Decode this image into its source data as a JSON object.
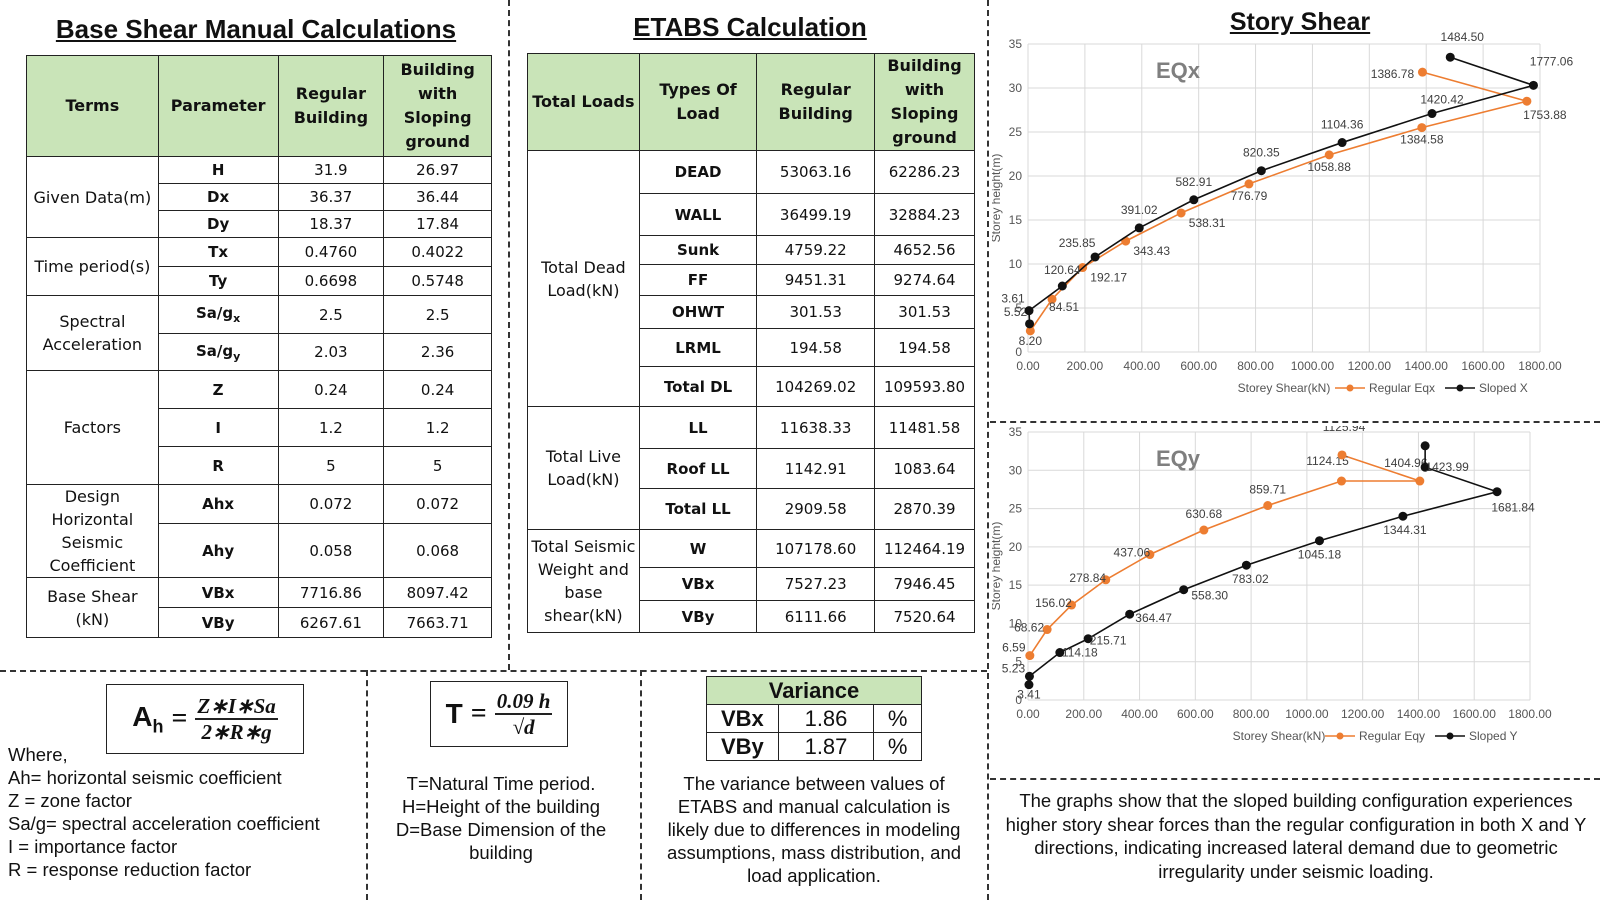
{
  "manual": {
    "title": "Base Shear Manual Calculations",
    "headers": [
      "Terms",
      "Parameter",
      "Regular Building",
      "Building with Sloping ground"
    ],
    "groups": [
      {
        "term": "Given Data(m)",
        "rows": [
          [
            "H",
            "31.9",
            "26.97"
          ],
          [
            "Dx",
            "36.37",
            "36.44"
          ],
          [
            "Dy",
            "18.37",
            "17.84"
          ]
        ]
      },
      {
        "term": "Time period(s)",
        "rows": [
          [
            "Tx",
            "0.4760",
            "0.4022"
          ],
          [
            "Ty",
            "0.6698",
            "0.5748"
          ]
        ]
      },
      {
        "term": "Spectral Acceleration",
        "rows": [
          [
            "Sa/gx",
            "2.5",
            "2.5"
          ],
          [
            "Sa/gy",
            "2.03",
            "2.36"
          ]
        ]
      },
      {
        "term": "Factors",
        "rows": [
          [
            "Z",
            "0.24",
            "0.24"
          ],
          [
            "I",
            "1.2",
            "1.2"
          ],
          [
            "R",
            "5",
            "5"
          ]
        ]
      },
      {
        "term": "Design Horizontal Seismic Coefficient",
        "rows": [
          [
            "Ahx",
            "0.072",
            "0.072"
          ],
          [
            "Ahy",
            "0.058",
            "0.068"
          ]
        ]
      },
      {
        "term": "Base Shear (kN)",
        "rows": [
          [
            "VBx",
            "7716.86",
            "8097.42"
          ],
          [
            "VBy",
            "6267.61",
            "7663.71"
          ]
        ]
      }
    ]
  },
  "etabs": {
    "title": "ETABS Calculation",
    "headers": [
      "Total Loads",
      "Types Of Load",
      "Regular Building",
      "Building with Sloping ground"
    ],
    "groups": [
      {
        "term": "Total Dead Load(kN)",
        "rows": [
          [
            "DEAD",
            "53063.16",
            "62286.23"
          ],
          [
            "WALL",
            "36499.19",
            "32884.23"
          ],
          [
            "Sunk",
            "4759.22",
            "4652.56"
          ],
          [
            "FF",
            "9451.31",
            "9274.64"
          ],
          [
            "OHWT",
            "301.53",
            "301.53"
          ],
          [
            "LRML",
            "194.58",
            "194.58"
          ],
          [
            "Total DL",
            "104269.02",
            "109593.80"
          ]
        ]
      },
      {
        "term": "Total Live Load(kN)",
        "rows": [
          [
            "LL",
            "11638.33",
            "11481.58"
          ],
          [
            "Roof LL",
            "1142.91",
            "1083.64"
          ],
          [
            "Total LL",
            "2909.58",
            "2870.39"
          ]
        ]
      },
      {
        "term": "Total Seismic Weight and base shear(kN)",
        "rows": [
          [
            "W",
            "107178.60",
            "112464.19"
          ],
          [
            "VBx",
            "7527.23",
            "7946.45"
          ],
          [
            "VBy",
            "6111.66",
            "7520.64"
          ]
        ]
      }
    ]
  },
  "formulas": {
    "ah_lhs": "A",
    "ah_sub": "h",
    "ah_num": "Z∗I∗Sa",
    "ah_den": "2∗R∗g",
    "t_lhs": "T",
    "t_num": "0.09 h",
    "t_den": "√d",
    "where_lines": [
      "Where,",
      "Ah= horizontal seismic coefficient",
      "Z = zone factor",
      "Sa/g= spectral acceleration coefficient",
      "I = importance factor",
      "R = response reduction factor"
    ],
    "t_lines": [
      "T=Natural Time period.",
      "H=Height of the building",
      "D=Base Dimension of the building"
    ]
  },
  "variance": {
    "title": "Variance",
    "rows": [
      [
        "VBx",
        "1.86",
        "%"
      ],
      [
        "VBy",
        "1.87",
        "%"
      ]
    ],
    "note": "The variance between values of ETABS and manual calculation is likely due to differences in modeling assumptions, mass distribution, and load application."
  },
  "story_shear": {
    "title": "Story Shear",
    "conclusion": "The graphs show that the sloped building configuration experiences higher story shear forces than the regular configuration in both X and Y directions, indicating increased lateral demand due to geometric irregularity under seismic loading."
  },
  "chart_data": [
    {
      "type": "line",
      "title": "EQx",
      "xlabel": "Storey Shear(kN)",
      "ylabel": "Storey height(m)",
      "xlim": [
        0,
        1800
      ],
      "ylim": [
        0,
        35
      ],
      "xticks": [
        "0.00",
        "200.00",
        "400.00",
        "600.00",
        "800.00",
        "1000.00",
        "1200.00",
        "1400.00",
        "1600.00",
        "1800.00"
      ],
      "yticks": [
        "0",
        "5",
        "10",
        "15",
        "20",
        "25",
        "30",
        "35"
      ],
      "grid": true,
      "legend": "bottom-right",
      "series": [
        {
          "name": "Regular Eqx",
          "color": "#ed7d31",
          "points": [
            [
              8.2,
              2.4
            ],
            [
              84.51,
              6.0
            ],
            [
              192.17,
              9.6
            ],
            [
              343.43,
              12.6
            ],
            [
              538.31,
              15.8
            ],
            [
              776.79,
              19.1
            ],
            [
              1058.88,
              22.4
            ],
            [
              1384.58,
              25.5
            ],
            [
              1753.88,
              28.5
            ],
            [
              1386.78,
              31.8
            ]
          ],
          "labels": [
            "8.20",
            "84.51",
            "192.17",
            "343.43",
            "538.31",
            "776.79",
            "1058.88",
            "1384.58",
            "1753.88",
            "1386.78"
          ]
        },
        {
          "name": "Sloped X",
          "color": "#111111",
          "points": [
            [
              5.52,
              3.2
            ],
            [
              3.61,
              4.7
            ],
            [
              120.64,
              7.5
            ],
            [
              235.85,
              10.8
            ],
            [
              391.02,
              14.1
            ],
            [
              582.91,
              17.3
            ],
            [
              820.35,
              20.6
            ],
            [
              1104.36,
              23.8
            ],
            [
              1420.42,
              27.1
            ],
            [
              1777.06,
              30.3
            ],
            [
              1484.5,
              33.5
            ]
          ],
          "labels": [
            "5.52",
            "3.61",
            "120.64",
            "235.85",
            "391.02",
            "582.91",
            "820.35",
            "1104.36",
            "1420.42",
            "1777.06",
            "1484.50"
          ]
        }
      ]
    },
    {
      "type": "line",
      "title": "EQy",
      "xlabel": "Storey Shear(kN)",
      "ylabel": "Storey height(m)",
      "xlim": [
        0,
        1800
      ],
      "ylim": [
        0,
        35
      ],
      "xticks": [
        "0.00",
        "200.00",
        "400.00",
        "600.00",
        "800.00",
        "1000.00",
        "1200.00",
        "1400.00",
        "1600.00",
        "1800.00"
      ],
      "yticks": [
        "0",
        "5",
        "10",
        "15",
        "20",
        "25",
        "30",
        "35"
      ],
      "grid": true,
      "legend": "bottom-right",
      "series": [
        {
          "name": "Regular Eqy",
          "color": "#ed7d31",
          "points": [
            [
              6.59,
              5.8
            ],
            [
              68.62,
              9.2
            ],
            [
              156.02,
              12.4
            ],
            [
              278.84,
              15.7
            ],
            [
              437.06,
              19.0
            ],
            [
              630.68,
              22.2
            ],
            [
              859.71,
              25.4
            ],
            [
              1124.15,
              28.6
            ],
            [
              1404.96,
              28.6
            ],
            [
              1125.94,
              32.0
            ]
          ],
          "labels": [
            "6.59",
            "68.62",
            "156.02",
            "278.84",
            "437.06",
            "630.68",
            "859.71",
            "1124.15",
            "1404.96",
            "1125.94"
          ]
        },
        {
          "name": "Sloped Y",
          "color": "#111111",
          "points": [
            [
              3.41,
              2.0
            ],
            [
              5.23,
              3.1
            ],
            [
              114.18,
              6.2
            ],
            [
              215.71,
              8.0
            ],
            [
              364.47,
              11.2
            ],
            [
              558.3,
              14.4
            ],
            [
              783.02,
              17.6
            ],
            [
              1045.18,
              20.8
            ],
            [
              1344.31,
              24.0
            ],
            [
              1681.84,
              27.2
            ],
            [
              1423.99,
              30.4
            ],
            [
              1423.99,
              33.2
            ]
          ],
          "labels": [
            "3.41",
            "5.23",
            "114.18",
            "215.71",
            "364.47",
            "558.30",
            "783.02",
            "1045.18",
            "1344.31",
            "1681.84",
            "1423.99",
            ""
          ]
        }
      ]
    }
  ]
}
